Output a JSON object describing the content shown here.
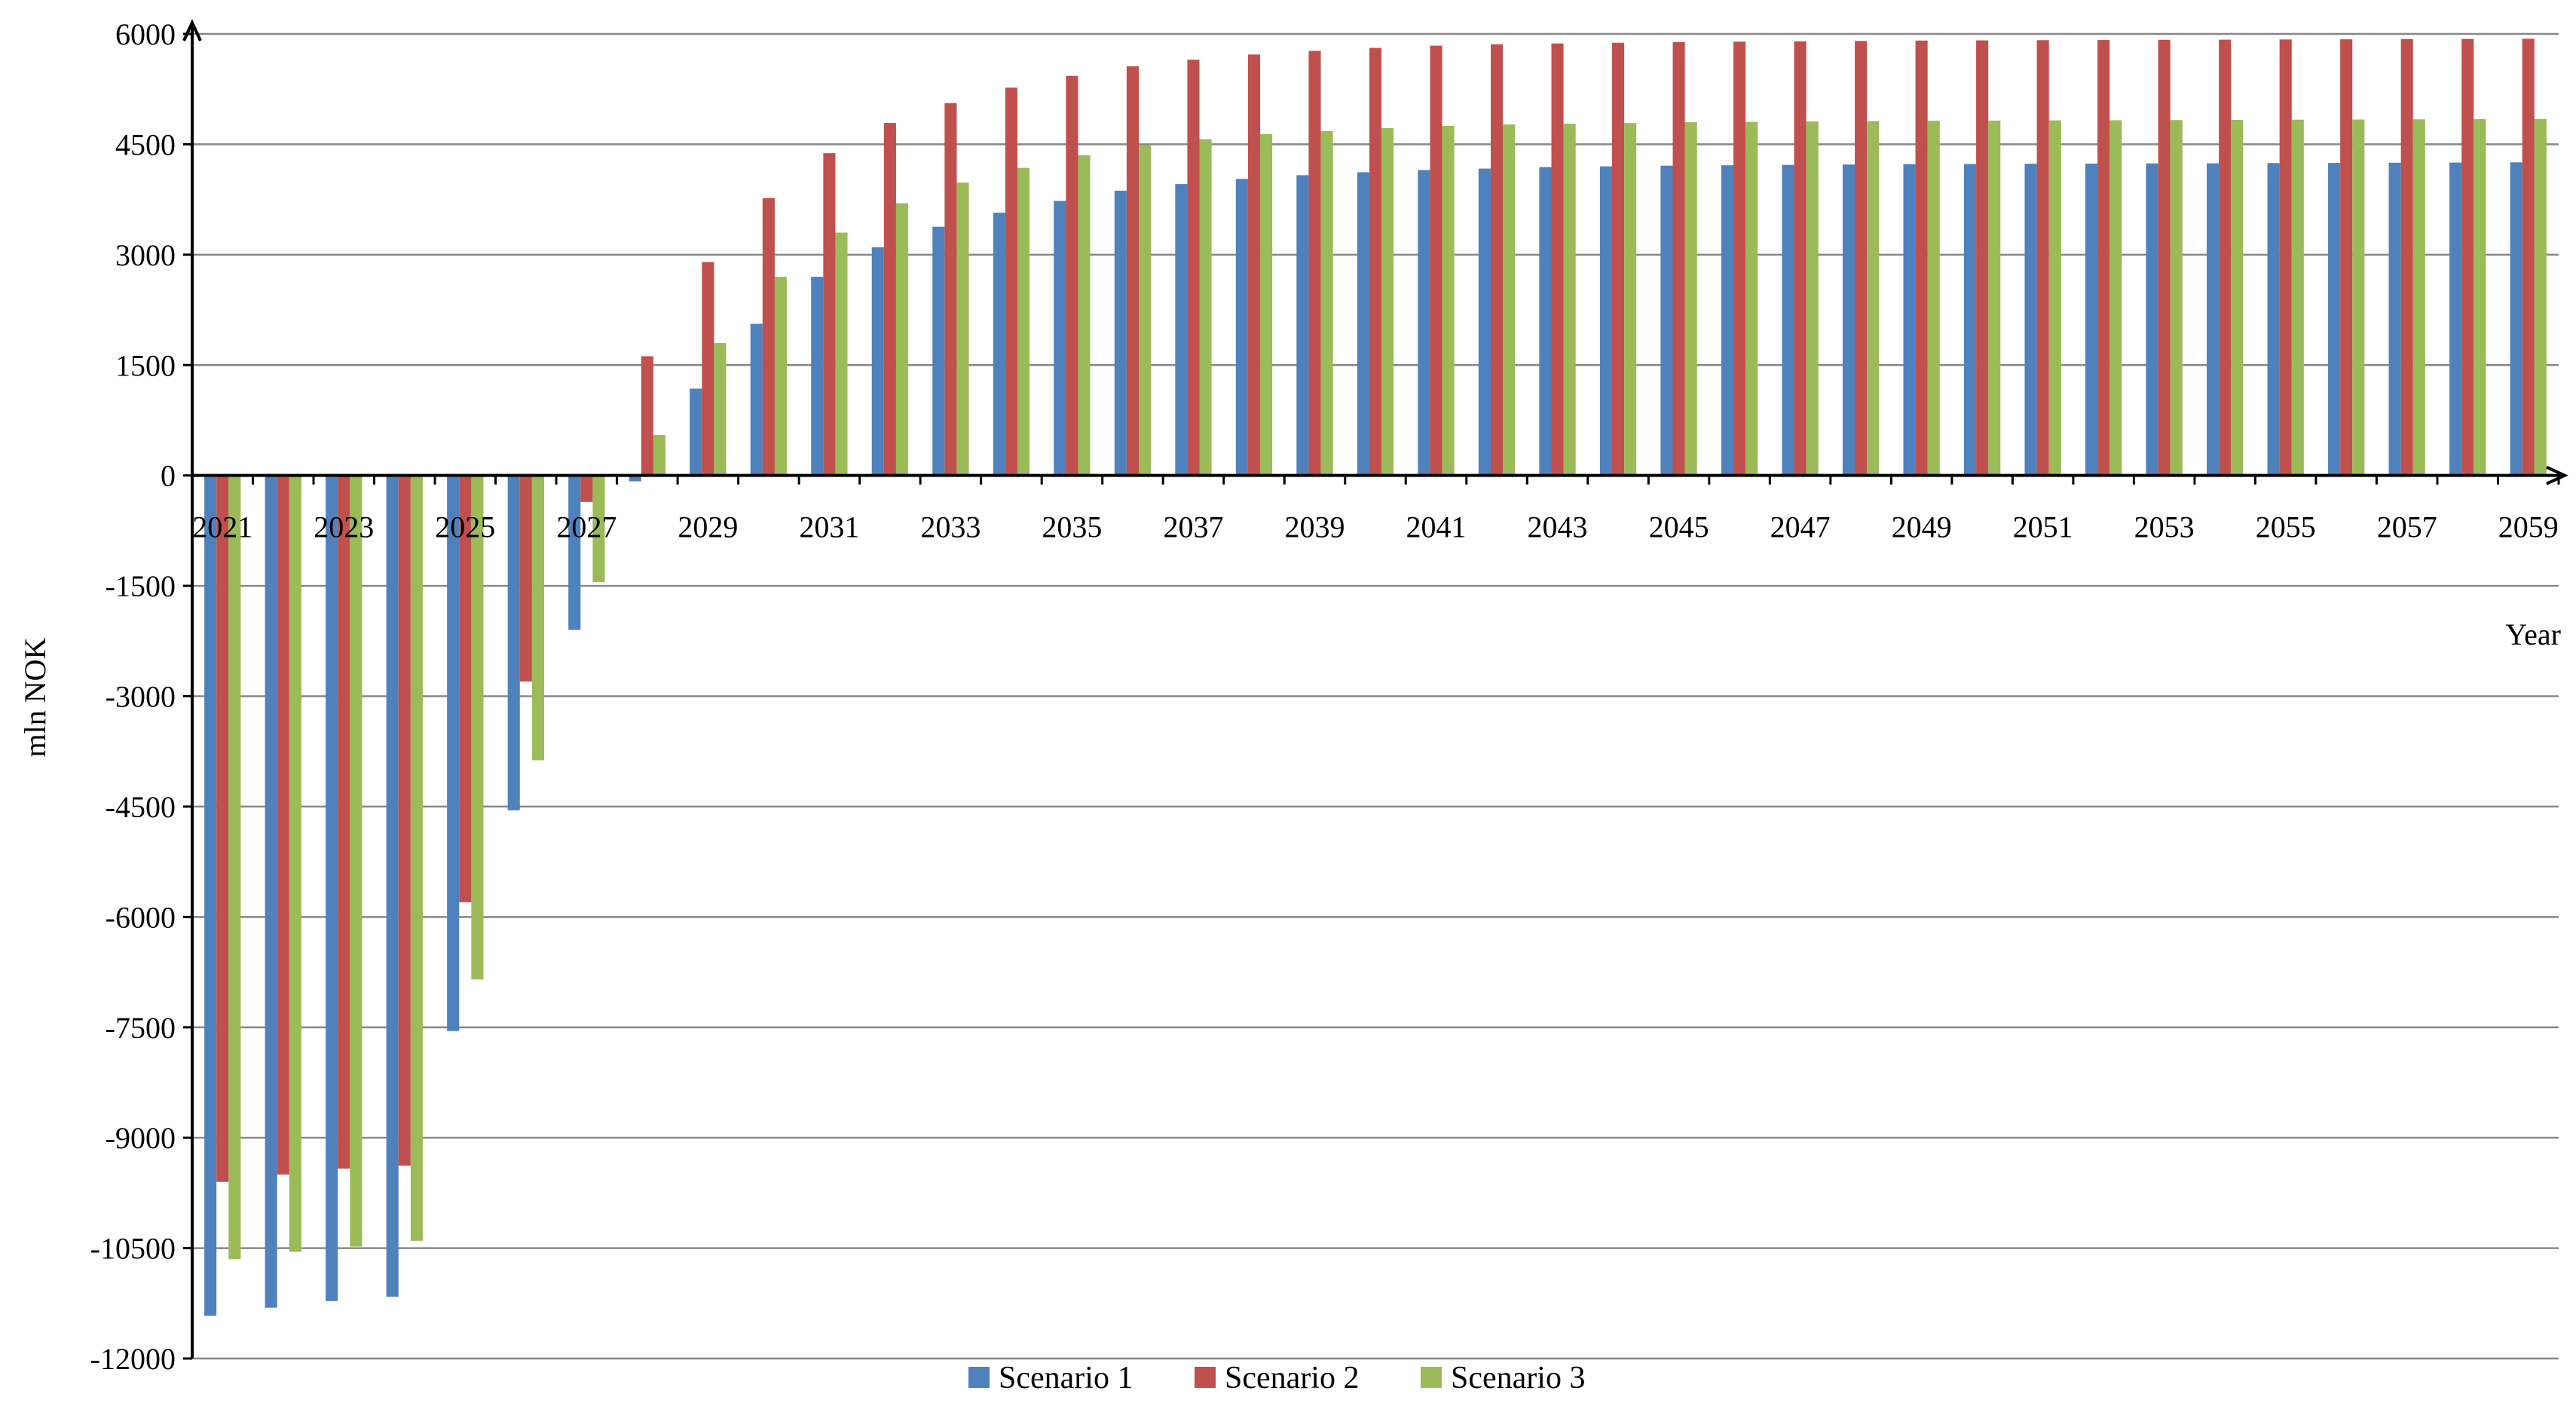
{
  "chart_data": {
    "type": "bar",
    "xlabel": "Year",
    "ylabel": "mln NOK",
    "ylim": [
      -12000,
      6000
    ],
    "yticks": [
      6000,
      4500,
      3000,
      1500,
      0,
      -1500,
      -3000,
      -4500,
      -6000,
      -7500,
      -9000,
      -10500,
      -12000
    ],
    "grid": true,
    "legend_position": "bottom",
    "categories": [
      "2021",
      "2022",
      "2023",
      "2024",
      "2025",
      "2026",
      "2027",
      "2028",
      "2029",
      "2030",
      "2031",
      "2032",
      "2033",
      "2034",
      "2035",
      "2036",
      "2037",
      "2038",
      "2039",
      "2040",
      "2041",
      "2042",
      "2043",
      "2044",
      "2045",
      "2046",
      "2047",
      "2048",
      "2049",
      "2050",
      "2051",
      "2052",
      "2053",
      "2054",
      "2055",
      "2056",
      "2057",
      "2058",
      "2059"
    ],
    "x_tick_labels": [
      "2021",
      "2023",
      "2025",
      "2027",
      "2029",
      "2031",
      "2033",
      "2035",
      "2037",
      "2039",
      "2041",
      "2043",
      "2045",
      "2047",
      "2049",
      "2051",
      "2053",
      "2055",
      "2057",
      "2059"
    ],
    "series": [
      {
        "name": "Scenario 1",
        "color": "#4f81bd",
        "values": [
          -11420,
          -11310,
          -11220,
          -11160,
          -7550,
          -4550,
          -2100,
          -80,
          1180,
          2060,
          2700,
          3100,
          3380,
          3570,
          3730,
          3870,
          3960,
          4030,
          4080,
          4120,
          4150,
          4170,
          4190,
          4200,
          4210,
          4215,
          4220,
          4225,
          4230,
          4232,
          4235,
          4237,
          4240,
          4242,
          4245,
          4247,
          4250,
          4252,
          4255
        ]
      },
      {
        "name": "Scenario 2",
        "color": "#c0504d",
        "values": [
          -9600,
          -9500,
          -9420,
          -9380,
          -5800,
          -2800,
          -360,
          1620,
          2900,
          3770,
          4380,
          4790,
          5060,
          5270,
          5430,
          5560,
          5650,
          5720,
          5770,
          5810,
          5840,
          5860,
          5870,
          5880,
          5890,
          5895,
          5900,
          5905,
          5910,
          5912,
          5915,
          5917,
          5920,
          5922,
          5925,
          5927,
          5930,
          5932,
          5935
        ]
      },
      {
        "name": "Scenario 3",
        "color": "#9bbb59",
        "values": [
          -10650,
          -10550,
          -10480,
          -10400,
          -6850,
          -3870,
          -1450,
          550,
          1800,
          2700,
          3300,
          3700,
          3980,
          4180,
          4350,
          4490,
          4570,
          4640,
          4680,
          4720,
          4750,
          4770,
          4780,
          4790,
          4800,
          4805,
          4810,
          4815,
          4820,
          4822,
          4825,
          4827,
          4830,
          4832,
          4835,
          4837,
          4840,
          4842,
          4845
        ]
      }
    ]
  }
}
